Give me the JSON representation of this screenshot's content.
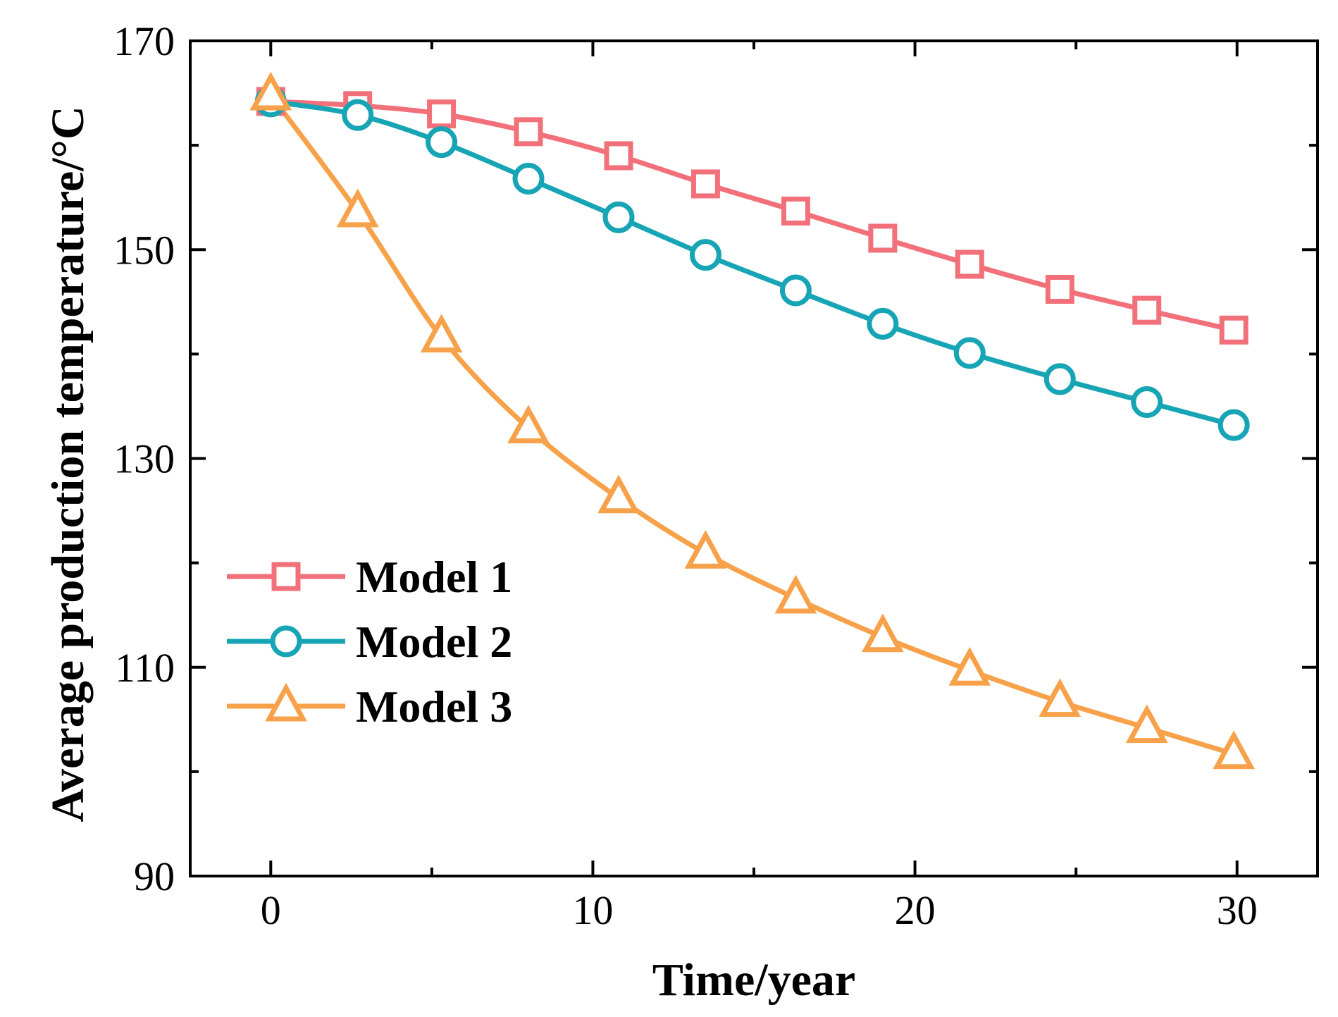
{
  "chart_data": {
    "type": "line",
    "title": "",
    "xlabel": "Time/year",
    "ylabel": "Average production temperature/°C",
    "xlim": [
      -2.5,
      32.5
    ],
    "ylim": [
      90,
      170
    ],
    "xticks": [
      0,
      10,
      20,
      30
    ],
    "xtick_labels": [
      "0",
      "10",
      "20",
      "30"
    ],
    "xminor": [
      5,
      15,
      25
    ],
    "yticks": [
      90,
      110,
      130,
      150,
      170
    ],
    "ytick_labels": [
      "90",
      "110",
      "130",
      "150",
      "170"
    ],
    "yminor": [
      100,
      120,
      140,
      160
    ],
    "grid": false,
    "legend_position": "bottom-left",
    "series": [
      {
        "name": "Model 1",
        "color": "#f2707a",
        "marker": "square",
        "x": [
          0,
          2.7,
          5.3,
          8.0,
          10.8,
          13.5,
          16.3,
          19.0,
          21.7,
          24.5,
          27.2,
          29.9
        ],
        "y": [
          164.2,
          163.8,
          163.0,
          161.3,
          159.0,
          156.3,
          153.7,
          151.1,
          148.6,
          146.2,
          144.2,
          142.3
        ]
      },
      {
        "name": "Model 2",
        "color": "#17a5b5",
        "marker": "circle",
        "x": [
          0,
          2.7,
          5.3,
          8.0,
          10.8,
          13.5,
          16.3,
          19.0,
          21.7,
          24.5,
          27.2,
          29.9
        ],
        "y": [
          164.2,
          162.9,
          160.3,
          156.8,
          153.1,
          149.5,
          146.1,
          142.9,
          140.1,
          137.6,
          135.4,
          133.2
        ]
      },
      {
        "name": "Model 3",
        "color": "#f7a24a",
        "marker": "triangle",
        "x": [
          0,
          2.7,
          5.3,
          8.0,
          10.8,
          13.5,
          16.3,
          19.0,
          21.7,
          24.5,
          27.2,
          29.9
        ],
        "y": [
          164.8,
          153.6,
          141.6,
          132.9,
          126.2,
          120.9,
          116.6,
          112.9,
          109.7,
          106.7,
          104.2,
          101.7
        ]
      }
    ]
  }
}
